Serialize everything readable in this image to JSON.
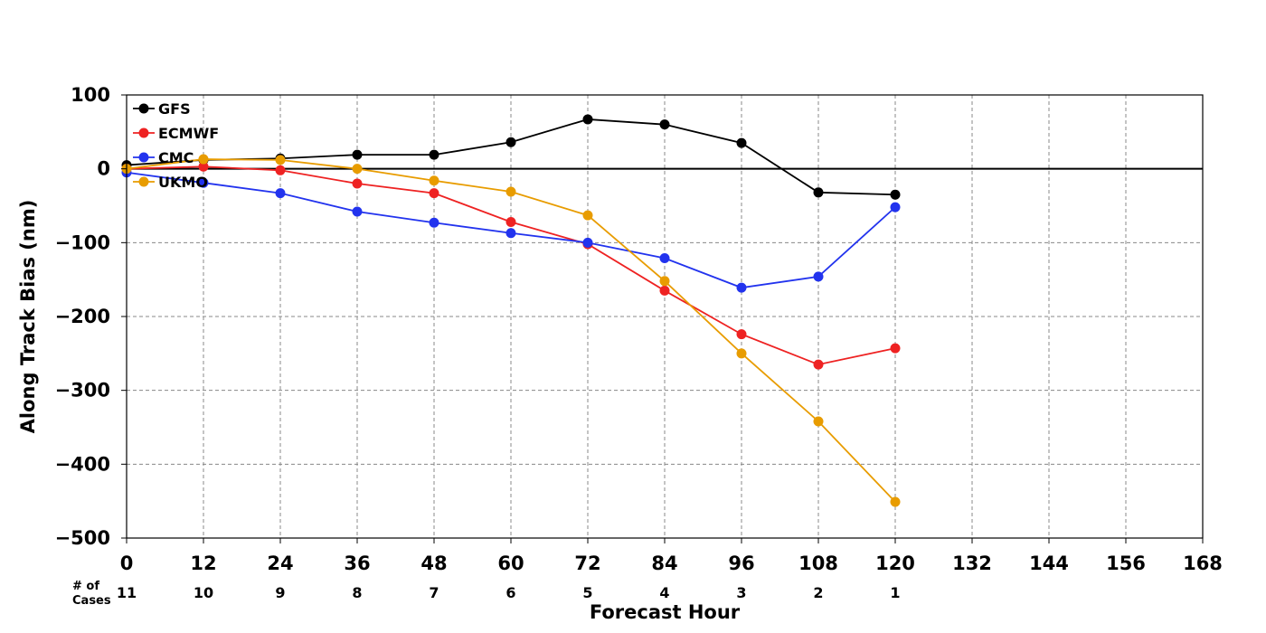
{
  "chart_data": {
    "type": "line",
    "xlabel": "Forecast Hour",
    "ylabel": "Along Track Bias (nm)",
    "xlim": [
      0,
      168
    ],
    "ylim": [
      -500,
      100
    ],
    "x_ticks": [
      0,
      12,
      24,
      36,
      48,
      60,
      72,
      84,
      96,
      108,
      120,
      132,
      144,
      156,
      168
    ],
    "x_tick_labels": [
      "0",
      "12",
      "24",
      "36",
      "48",
      "60",
      "72",
      "84",
      "96",
      "108",
      "120",
      "132",
      "144",
      "156",
      "168"
    ],
    "y_ticks": [
      -500,
      -400,
      -300,
      -200,
      -100,
      0,
      100
    ],
    "y_tick_labels": [
      "−500",
      "−400",
      "−300",
      "−200",
      "−100",
      "0",
      "100"
    ],
    "grid": true,
    "zero_line": true,
    "legend_position": "top-left",
    "x": [
      0,
      12,
      24,
      36,
      48,
      60,
      72,
      84,
      96,
      108,
      120
    ],
    "series": [
      {
        "name": "GFS",
        "color": "#000000",
        "values": [
          5,
          12,
          14,
          19,
          19,
          36,
          67,
          60,
          35,
          -32,
          -35
        ]
      },
      {
        "name": "ECMWF",
        "color": "#ee2222",
        "values": [
          0,
          3,
          -2,
          -20,
          -33,
          -72,
          -102,
          -165,
          -224,
          -265,
          -243
        ]
      },
      {
        "name": "CMC",
        "color": "#2233ee",
        "values": [
          -5,
          -19,
          -33,
          -58,
          -73,
          -87,
          -100,
          -121,
          -161,
          -146,
          -52
        ]
      },
      {
        "name": "UKMO",
        "color": "#e89c00",
        "values": [
          0,
          13,
          12,
          0,
          -16,
          -31,
          -63,
          -152,
          -250,
          -342,
          -451
        ]
      }
    ],
    "cases": {
      "label_line1": "# of",
      "label_line2": "Cases",
      "hours": [
        0,
        12,
        24,
        36,
        48,
        60,
        72,
        84,
        96,
        108,
        120
      ],
      "counts": [
        "11",
        "10",
        "9",
        "8",
        "7",
        "6",
        "5",
        "4",
        "3",
        "2",
        "1"
      ]
    }
  }
}
